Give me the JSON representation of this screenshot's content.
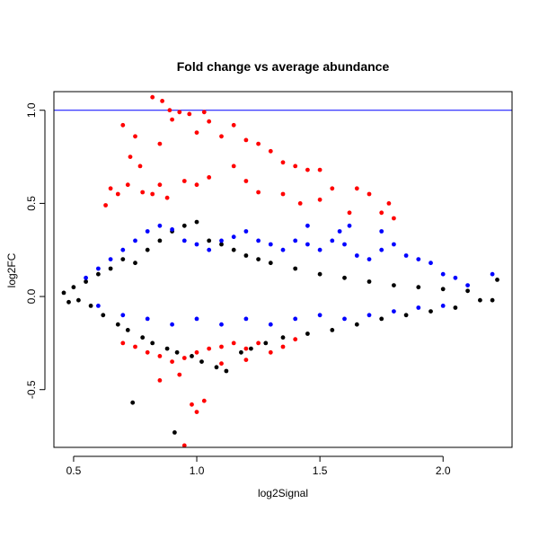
{
  "chart_data": {
    "type": "scatter",
    "title": "Fold change vs average abundance",
    "xlabel": "log2Signal",
    "ylabel": "log2FC",
    "xlim": [
      0.42,
      2.28
    ],
    "ylim": [
      -0.81,
      1.1
    ],
    "x_ticks": [
      "0.5",
      "1.0",
      "1.5",
      "2.0"
    ],
    "x_tick_values": [
      0.5,
      1.0,
      1.5,
      2.0
    ],
    "y_ticks": [
      "-0.5",
      "0.0",
      "0.5",
      "1.0"
    ],
    "y_tick_values": [
      -0.5,
      0.0,
      0.5,
      1.0
    ],
    "grid": false,
    "legend": "none",
    "reference_line": {
      "y": 1.0,
      "color": "#0000ff"
    },
    "colors": {
      "black": "#000000",
      "blue": "#0000ff",
      "red": "#ff0000"
    },
    "series": [
      {
        "color": "black",
        "points": [
          [
            0.46,
            0.02
          ],
          [
            0.48,
            -0.03
          ],
          [
            0.5,
            0.05
          ],
          [
            0.52,
            -0.02
          ],
          [
            0.55,
            0.08
          ],
          [
            0.57,
            -0.05
          ],
          [
            0.6,
            0.12
          ],
          [
            0.62,
            -0.1
          ],
          [
            0.65,
            0.15
          ],
          [
            0.68,
            -0.15
          ],
          [
            0.7,
            0.2
          ],
          [
            0.72,
            -0.18
          ],
          [
            0.75,
            0.18
          ],
          [
            0.78,
            -0.22
          ],
          [
            0.8,
            0.25
          ],
          [
            0.82,
            -0.25
          ],
          [
            0.85,
            0.3
          ],
          [
            0.88,
            -0.28
          ],
          [
            0.9,
            0.35
          ],
          [
            0.92,
            -0.3
          ],
          [
            0.95,
            0.38
          ],
          [
            0.98,
            -0.32
          ],
          [
            1.0,
            0.4
          ],
          [
            1.02,
            -0.35
          ],
          [
            1.05,
            0.3
          ],
          [
            1.08,
            -0.38
          ],
          [
            1.1,
            0.28
          ],
          [
            1.12,
            -0.4
          ],
          [
            1.15,
            0.25
          ],
          [
            1.18,
            -0.3
          ],
          [
            1.2,
            0.22
          ],
          [
            1.22,
            -0.28
          ],
          [
            1.25,
            0.2
          ],
          [
            1.28,
            -0.25
          ],
          [
            1.3,
            0.18
          ],
          [
            1.35,
            -0.22
          ],
          [
            1.4,
            0.15
          ],
          [
            1.45,
            -0.2
          ],
          [
            1.5,
            0.12
          ],
          [
            1.55,
            -0.18
          ],
          [
            1.6,
            0.1
          ],
          [
            1.65,
            -0.15
          ],
          [
            1.7,
            0.08
          ],
          [
            1.75,
            -0.12
          ],
          [
            1.8,
            0.06
          ],
          [
            1.85,
            -0.1
          ],
          [
            1.9,
            0.05
          ],
          [
            1.95,
            -0.08
          ],
          [
            2.0,
            0.04
          ],
          [
            2.05,
            -0.06
          ],
          [
            2.1,
            0.03
          ],
          [
            2.15,
            -0.02
          ],
          [
            2.22,
            0.09
          ],
          [
            2.2,
            -0.02
          ],
          [
            0.74,
            -0.57
          ],
          [
            0.91,
            -0.73
          ]
        ]
      },
      {
        "color": "blue",
        "points": [
          [
            0.55,
            0.1
          ],
          [
            0.6,
            0.15
          ],
          [
            0.65,
            0.2
          ],
          [
            0.7,
            0.25
          ],
          [
            0.75,
            0.3
          ],
          [
            0.8,
            0.35
          ],
          [
            0.85,
            0.38
          ],
          [
            0.9,
            0.36
          ],
          [
            0.95,
            0.3
          ],
          [
            1.0,
            0.28
          ],
          [
            1.05,
            0.25
          ],
          [
            1.1,
            0.3
          ],
          [
            1.15,
            0.32
          ],
          [
            1.2,
            0.35
          ],
          [
            1.25,
            0.3
          ],
          [
            1.3,
            0.28
          ],
          [
            1.35,
            0.25
          ],
          [
            1.4,
            0.3
          ],
          [
            1.45,
            0.28
          ],
          [
            1.5,
            0.25
          ],
          [
            1.55,
            0.3
          ],
          [
            1.6,
            0.28
          ],
          [
            1.65,
            0.22
          ],
          [
            1.7,
            0.2
          ],
          [
            1.75,
            0.25
          ],
          [
            1.8,
            0.28
          ],
          [
            1.85,
            0.22
          ],
          [
            1.9,
            0.2
          ],
          [
            1.95,
            0.18
          ],
          [
            2.0,
            0.12
          ],
          [
            2.05,
            0.1
          ],
          [
            2.1,
            0.06
          ],
          [
            2.2,
            0.12
          ],
          [
            0.6,
            -0.05
          ],
          [
            0.7,
            -0.1
          ],
          [
            0.8,
            -0.12
          ],
          [
            0.9,
            -0.15
          ],
          [
            1.0,
            -0.12
          ],
          [
            1.1,
            -0.15
          ],
          [
            1.2,
            -0.12
          ],
          [
            1.3,
            -0.15
          ],
          [
            1.4,
            -0.12
          ],
          [
            1.5,
            -0.1
          ],
          [
            1.6,
            -0.12
          ],
          [
            1.7,
            -0.1
          ],
          [
            1.8,
            -0.08
          ],
          [
            1.9,
            -0.06
          ],
          [
            2.0,
            -0.05
          ],
          [
            1.45,
            0.38
          ],
          [
            1.58,
            0.35
          ],
          [
            1.75,
            0.35
          ],
          [
            1.62,
            0.38
          ]
        ]
      },
      {
        "color": "red",
        "points": [
          [
            0.82,
            1.07
          ],
          [
            0.86,
            1.05
          ],
          [
            0.89,
            1.0
          ],
          [
            0.93,
            0.99
          ],
          [
            0.97,
            0.98
          ],
          [
            1.03,
            0.99
          ],
          [
            0.9,
            0.95
          ],
          [
            1.05,
            0.94
          ],
          [
            0.7,
            0.92
          ],
          [
            1.15,
            0.92
          ],
          [
            0.75,
            0.86
          ],
          [
            0.85,
            0.82
          ],
          [
            1.0,
            0.88
          ],
          [
            1.1,
            0.86
          ],
          [
            1.2,
            0.84
          ],
          [
            1.25,
            0.82
          ],
          [
            0.73,
            0.75
          ],
          [
            0.77,
            0.7
          ],
          [
            1.3,
            0.78
          ],
          [
            1.15,
            0.7
          ],
          [
            1.35,
            0.72
          ],
          [
            1.4,
            0.7
          ],
          [
            1.45,
            0.68
          ],
          [
            1.5,
            0.68
          ],
          [
            0.95,
            0.62
          ],
          [
            1.0,
            0.6
          ],
          [
            1.05,
            0.64
          ],
          [
            0.85,
            0.6
          ],
          [
            1.2,
            0.62
          ],
          [
            1.55,
            0.58
          ],
          [
            1.65,
            0.58
          ],
          [
            1.7,
            0.55
          ],
          [
            0.65,
            0.58
          ],
          [
            0.68,
            0.55
          ],
          [
            0.72,
            0.6
          ],
          [
            0.78,
            0.56
          ],
          [
            0.82,
            0.55
          ],
          [
            0.88,
            0.53
          ],
          [
            1.25,
            0.56
          ],
          [
            1.35,
            0.55
          ],
          [
            1.42,
            0.5
          ],
          [
            1.5,
            0.52
          ],
          [
            1.62,
            0.45
          ],
          [
            1.75,
            0.45
          ],
          [
            1.78,
            0.5
          ],
          [
            1.8,
            0.42
          ],
          [
            0.63,
            0.49
          ],
          [
            0.7,
            -0.25
          ],
          [
            0.75,
            -0.27
          ],
          [
            0.8,
            -0.3
          ],
          [
            0.85,
            -0.32
          ],
          [
            0.9,
            -0.35
          ],
          [
            0.95,
            -0.33
          ],
          [
            1.0,
            -0.3
          ],
          [
            1.05,
            -0.28
          ],
          [
            1.1,
            -0.27
          ],
          [
            1.15,
            -0.25
          ],
          [
            1.2,
            -0.28
          ],
          [
            1.25,
            -0.25
          ],
          [
            1.3,
            -0.3
          ],
          [
            1.35,
            -0.27
          ],
          [
            1.4,
            -0.23
          ],
          [
            0.85,
            -0.45
          ],
          [
            0.93,
            -0.42
          ],
          [
            0.98,
            -0.58
          ],
          [
            1.03,
            -0.56
          ],
          [
            1.0,
            -0.62
          ],
          [
            0.95,
            -0.8
          ],
          [
            1.1,
            -0.36
          ],
          [
            1.2,
            -0.34
          ]
        ]
      }
    ]
  }
}
